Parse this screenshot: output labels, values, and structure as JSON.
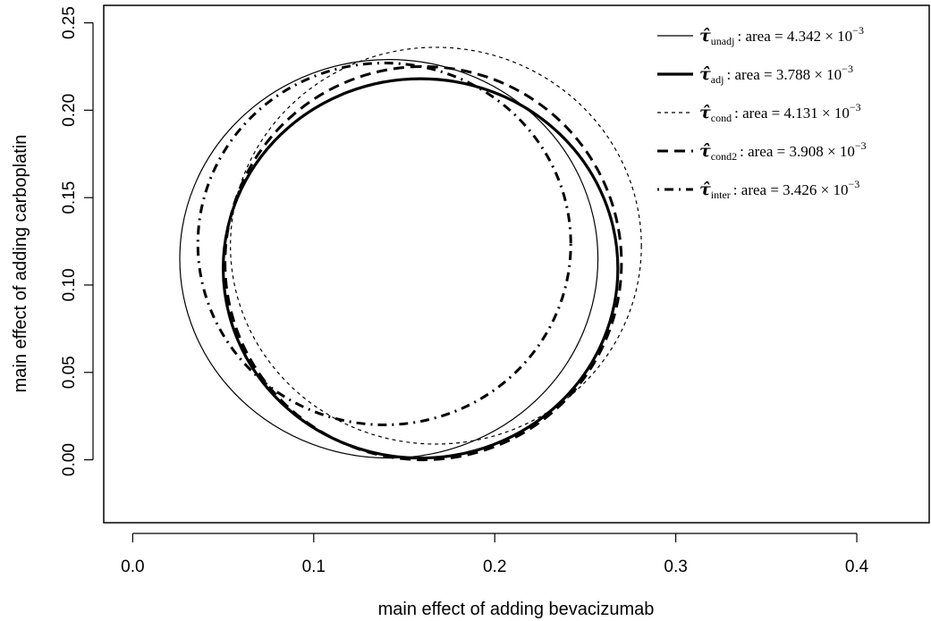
{
  "chart_data": {
    "type": "line",
    "xlabel": "main effect of adding bevacizumab",
    "ylabel": "main effect of adding carboplatin",
    "xlim": [
      -0.016,
      0.44
    ],
    "ylim": [
      -0.036,
      0.26
    ],
    "x_ticks": [
      "0.0",
      "0.1",
      "0.2",
      "0.3",
      "0.4"
    ],
    "y_ticks": [
      "0.00",
      "0.05",
      "0.10",
      "0.15",
      "0.20",
      "0.25"
    ],
    "legend_position": "top-right",
    "series": [
      {
        "symbol": "τ̂",
        "subscript": "unadj",
        "area_label": ": area = 4.342 × 10",
        "exponent": "−3",
        "line_style": "solid-thin",
        "ellipse": {
          "x": [
            0.026,
            0.257
          ],
          "y": [
            0.001,
            0.229
          ]
        }
      },
      {
        "symbol": "τ̂",
        "subscript": "adj",
        "area_label": ": area = 3.788 × 10",
        "exponent": "−3",
        "line_style": "solid-thick",
        "ellipse": {
          "x": [
            0.05,
            0.268
          ],
          "y": [
            0.001,
            0.218
          ]
        }
      },
      {
        "symbol": "τ̂",
        "subscript": "cond",
        "area_label": ": area = 4.131 × 10",
        "exponent": "−3",
        "line_style": "dotted",
        "ellipse": {
          "x": [
            0.054,
            0.281
          ],
          "y": [
            0.009,
            0.236
          ]
        }
      },
      {
        "symbol": "τ̂",
        "subscript": "cond2",
        "area_label": ": area = 3.908 × 10",
        "exponent": "−3",
        "line_style": "dashed-thick",
        "ellipse": {
          "x": [
            0.051,
            0.27
          ],
          "y": [
            0.0,
            0.225
          ]
        }
      },
      {
        "symbol": "τ̂",
        "subscript": "inter",
        "area_label": ": area = 3.426 × 10",
        "exponent": "−3",
        "line_style": "dotdash-thick",
        "ellipse": {
          "x": [
            0.036,
            0.242
          ],
          "y": [
            0.02,
            0.227
          ]
        }
      }
    ]
  }
}
